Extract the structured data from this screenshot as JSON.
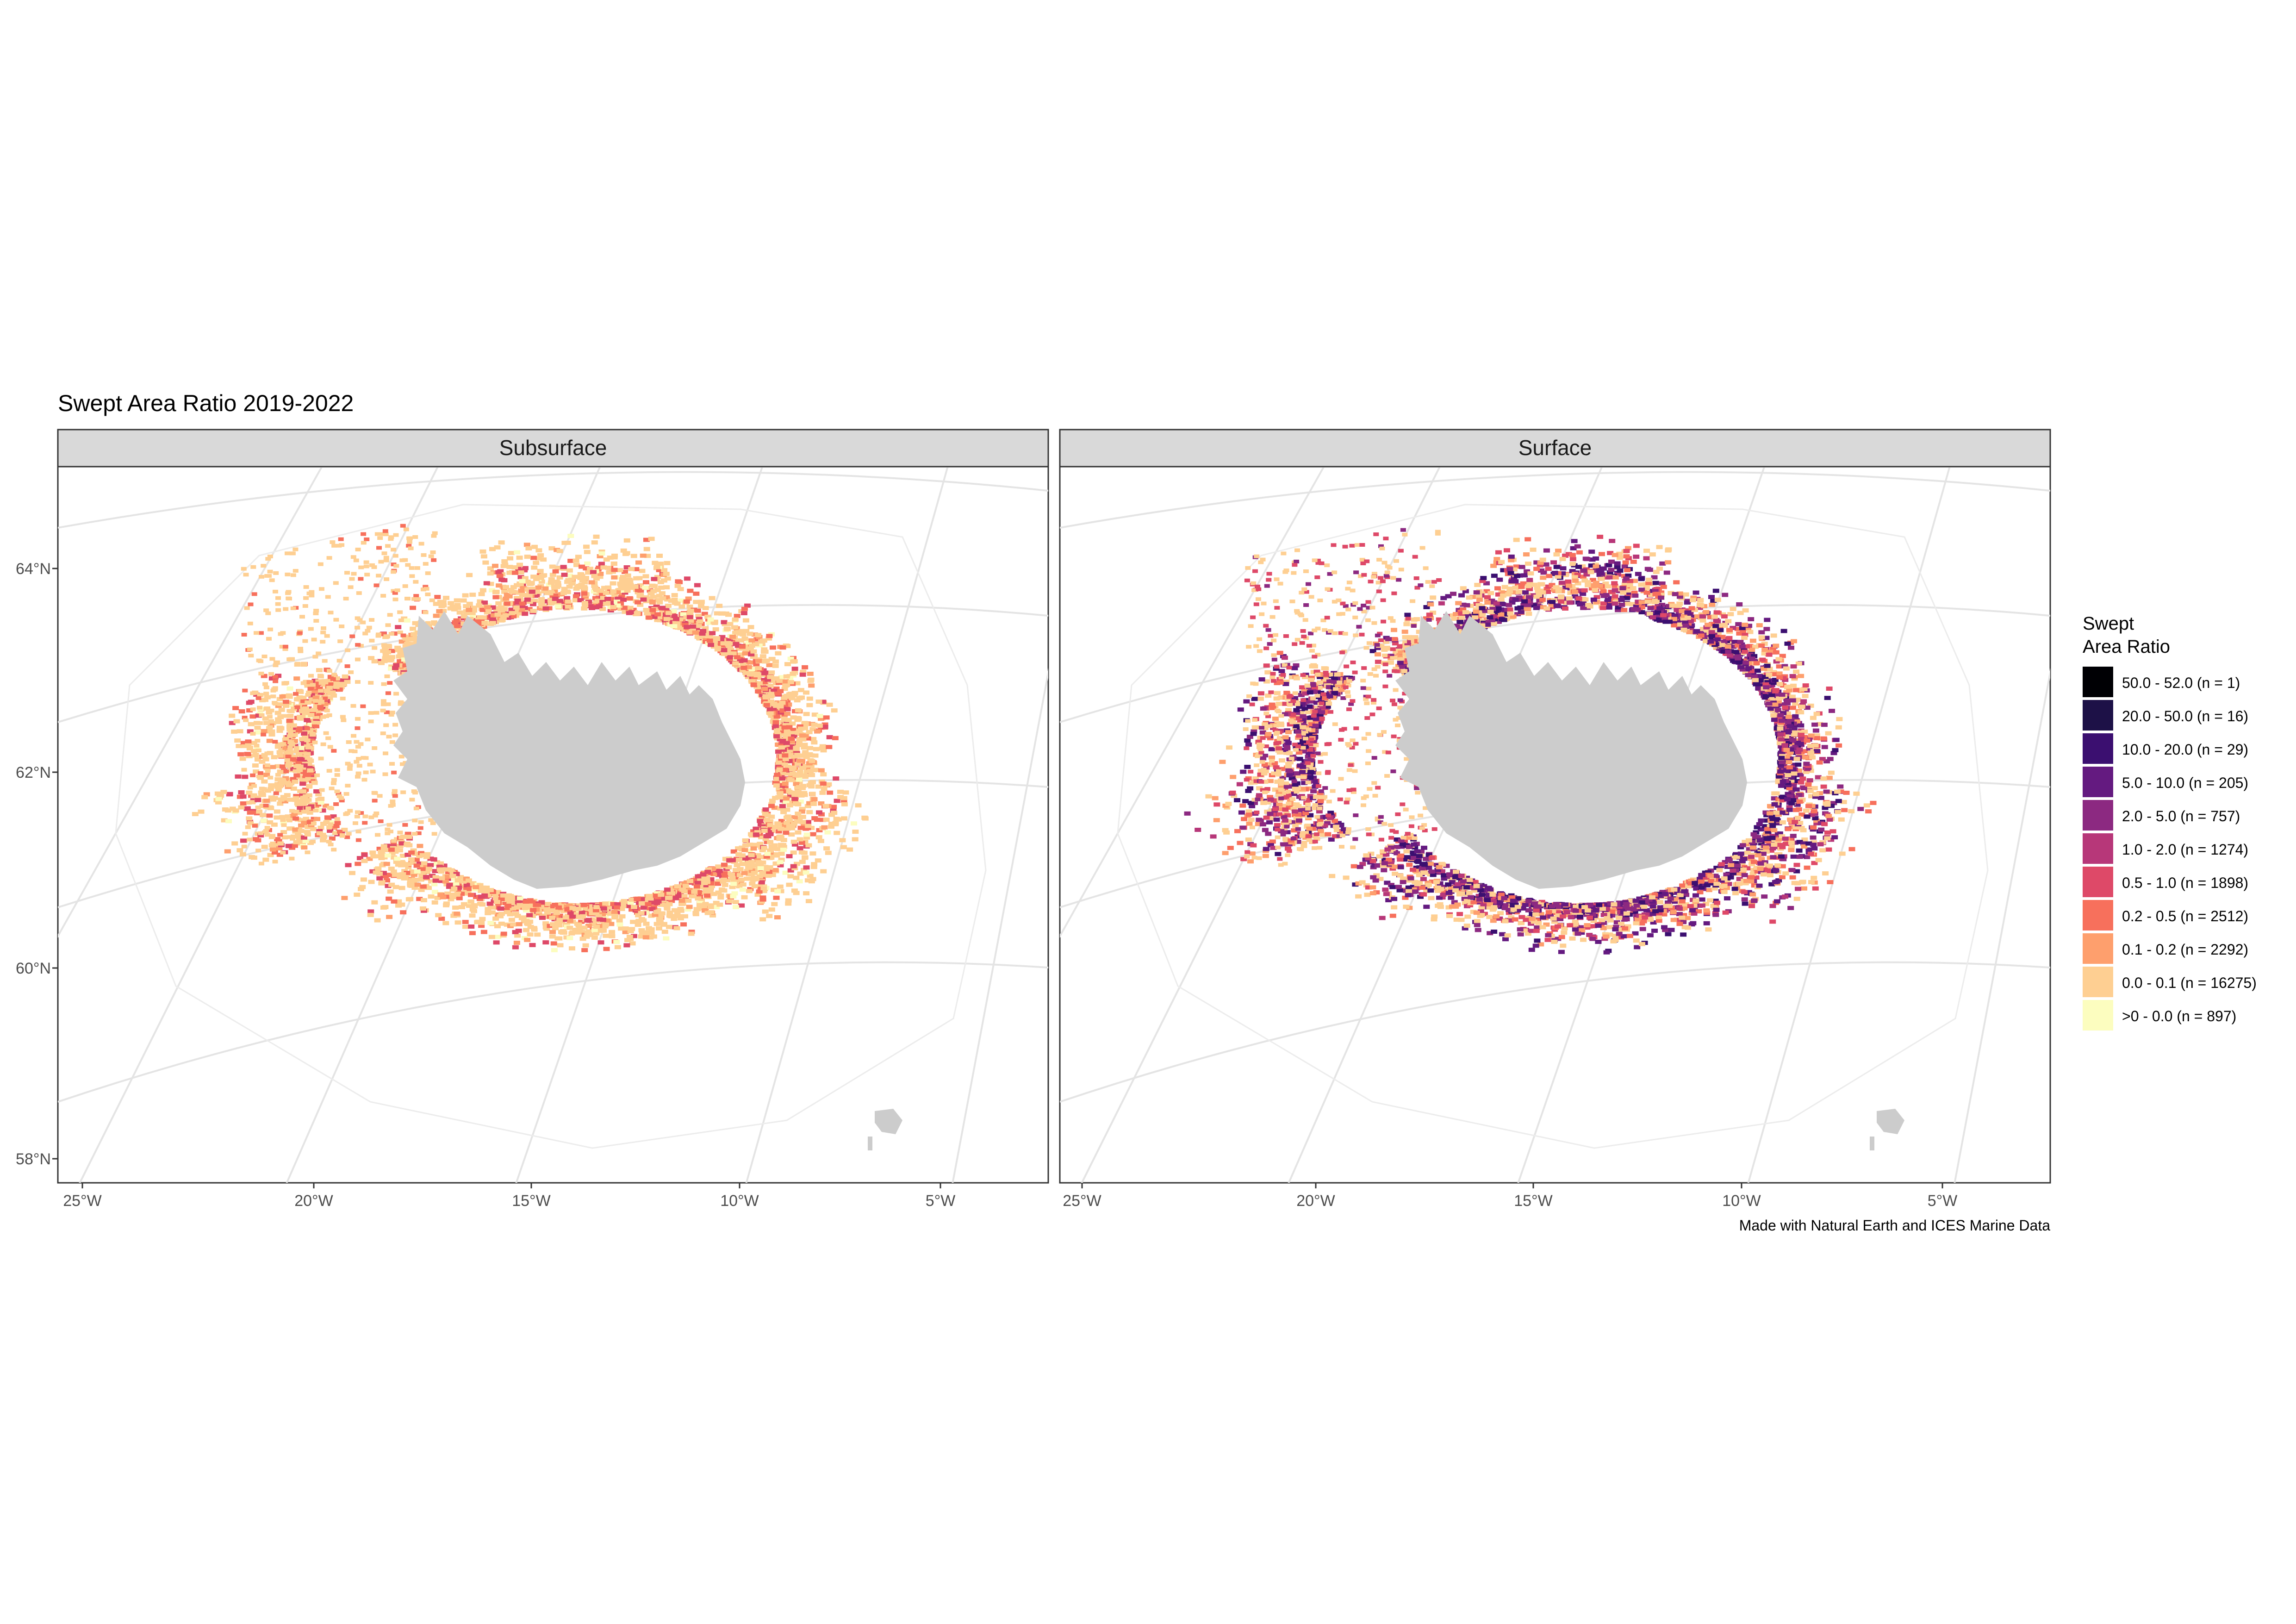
{
  "title": "Swept Area Ratio 2019-2022",
  "caption": "Made with Natural Earth and ICES Marine Data",
  "panels": [
    {
      "strip_label": "Subsurface",
      "fishing_intensity": "low"
    },
    {
      "strip_label": "Surface",
      "fishing_intensity": "high"
    }
  ],
  "axes": {
    "x_ticks": [
      "25°W",
      "20°W",
      "15°W",
      "10°W",
      "5°W"
    ],
    "y_ticks": [
      "64°N",
      "62°N",
      "60°N",
      "58°N"
    ]
  },
  "legend": {
    "title_line1": "Swept",
    "title_line2": "Area Ratio",
    "items": [
      {
        "label": "50.0 - 52.0 (n = 1)",
        "color": "#000004"
      },
      {
        "label": "20.0 - 50.0 (n = 16)",
        "color": "#1d1147"
      },
      {
        "label": "10.0 - 20.0 (n = 29)",
        "color": "#3b0f70"
      },
      {
        "label": "5.0 - 10.0 (n = 205)",
        "color": "#641a80"
      },
      {
        "label": "2.0 - 5.0 (n = 757)",
        "color": "#8c2981"
      },
      {
        "label": "1.0 - 2.0 (n = 1274)",
        "color": "#b73779"
      },
      {
        "label": "0.5 - 1.0 (n = 1898)",
        "color": "#de4968"
      },
      {
        "label": "0.2 - 0.5 (n = 2512)",
        "color": "#f7705c"
      },
      {
        "label": "0.1 - 0.2 (n = 2292)",
        "color": "#fe9f6d"
      },
      {
        "label": "0.0 - 0.1 (n = 16275)",
        "color": "#fecf92"
      },
      {
        "label": ">0 - 0.0 (n = 897)",
        "color": "#fcfdbf"
      }
    ]
  },
  "colors": {
    "land": "#cccccc",
    "graticule": "#e4e4e4",
    "strip_fill": "#d9d9d9",
    "panel_border": "#333333"
  }
}
